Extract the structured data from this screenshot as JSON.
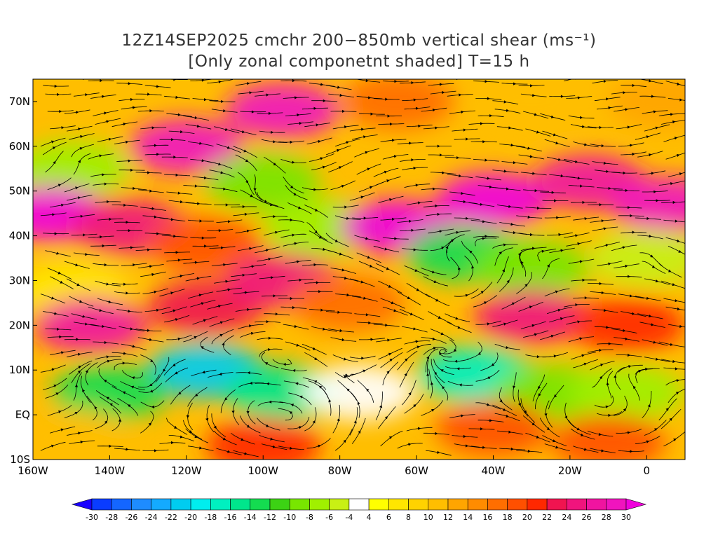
{
  "chart_data": {
    "type": "heatmap",
    "title": "12Z14SEP2025 cmchr 200−850mb vertical shear (ms⁻¹)",
    "subtitle": "[Only zonal componetnt shaded] T=15 h",
    "x_tick_labels": [
      "160W",
      "140W",
      "120W",
      "100W",
      "80W",
      "60W",
      "40W",
      "20W",
      "0"
    ],
    "x_tick_values": [
      -160,
      -140,
      -120,
      -100,
      -80,
      -60,
      -40,
      -20,
      0
    ],
    "y_tick_labels": [
      "70N",
      "60N",
      "50N",
      "40N",
      "30N",
      "20N",
      "10N",
      "EQ",
      "10S"
    ],
    "y_tick_values": [
      70,
      60,
      50,
      40,
      30,
      20,
      10,
      0,
      -10
    ],
    "xlim": [
      -160,
      10
    ],
    "ylim": [
      -10,
      75
    ],
    "colorbar": {
      "labels": [
        "-30",
        "-28",
        "-26",
        "-24",
        "-22",
        "-20",
        "-18",
        "-16",
        "-14",
        "-12",
        "-10",
        "-8",
        "-6",
        "-4",
        "4",
        "6",
        "8",
        "10",
        "12",
        "14",
        "16",
        "18",
        "20",
        "22",
        "24",
        "26",
        "28",
        "30"
      ],
      "colors": [
        "#1a00ff",
        "#0a3cff",
        "#1466ff",
        "#1e8cff",
        "#14aaff",
        "#00ccf0",
        "#00eeee",
        "#00f0c0",
        "#00e68c",
        "#14dc50",
        "#3cd214",
        "#78e600",
        "#a0f000",
        "#c8f014",
        "#ffffff",
        "#ffff00",
        "#ffe600",
        "#ffd200",
        "#ffbe00",
        "#ffa500",
        "#ff8c00",
        "#ff6e00",
        "#ff5000",
        "#ff2800",
        "#f01450",
        "#f0147d",
        "#f014a0",
        "#f014be",
        "#f000dc"
      ]
    },
    "streamline_color": "#000000",
    "contour_color": "#8a2be2",
    "zonal_shear_field": [
      {
        "lon": -150,
        "lat": 55,
        "u": -8
      },
      {
        "lon": -120,
        "lat": 60,
        "u": 28
      },
      {
        "lon": -95,
        "lat": 68,
        "u": 28
      },
      {
        "lon": -65,
        "lat": 70,
        "u": 16
      },
      {
        "lon": -30,
        "lat": 70,
        "u": 10
      },
      {
        "lon": 5,
        "lat": 70,
        "u": 12
      },
      {
        "lon": -155,
        "lat": 45,
        "u": 30
      },
      {
        "lon": -135,
        "lat": 42,
        "u": 24
      },
      {
        "lon": -115,
        "lat": 38,
        "u": 18
      },
      {
        "lon": -100,
        "lat": 52,
        "u": -10
      },
      {
        "lon": -85,
        "lat": 42,
        "u": -8
      },
      {
        "lon": -65,
        "lat": 42,
        "u": 30
      },
      {
        "lon": -40,
        "lat": 48,
        "u": 30
      },
      {
        "lon": -15,
        "lat": 52,
        "u": 26
      },
      {
        "lon": 5,
        "lat": 47,
        "u": 28
      },
      {
        "lon": -48,
        "lat": 36,
        "u": -14
      },
      {
        "lon": -30,
        "lat": 33,
        "u": -10
      },
      {
        "lon": 0,
        "lat": 35,
        "u": -6
      },
      {
        "lon": -150,
        "lat": 28,
        "u": 6
      },
      {
        "lon": -145,
        "lat": 20,
        "u": 26
      },
      {
        "lon": -115,
        "lat": 24,
        "u": 22
      },
      {
        "lon": -95,
        "lat": 30,
        "u": 24
      },
      {
        "lon": -78,
        "lat": 25,
        "u": 16
      },
      {
        "lon": -30,
        "lat": 22,
        "u": 24
      },
      {
        "lon": -5,
        "lat": 20,
        "u": 20
      },
      {
        "lon": -115,
        "lat": 10,
        "u": -22
      },
      {
        "lon": -140,
        "lat": 5,
        "u": -14
      },
      {
        "lon": -95,
        "lat": 5,
        "u": -16
      },
      {
        "lon": -75,
        "lat": 5,
        "u": -4
      },
      {
        "lon": -45,
        "lat": 9,
        "u": -18
      },
      {
        "lon": -25,
        "lat": 5,
        "u": -10
      },
      {
        "lon": -5,
        "lat": 5,
        "u": -8
      },
      {
        "lon": -150,
        "lat": -5,
        "u": 10
      },
      {
        "lon": -100,
        "lat": -7,
        "u": 20
      },
      {
        "lon": -40,
        "lat": -3,
        "u": 18
      },
      {
        "lon": -10,
        "lat": -6,
        "u": 18
      }
    ]
  }
}
